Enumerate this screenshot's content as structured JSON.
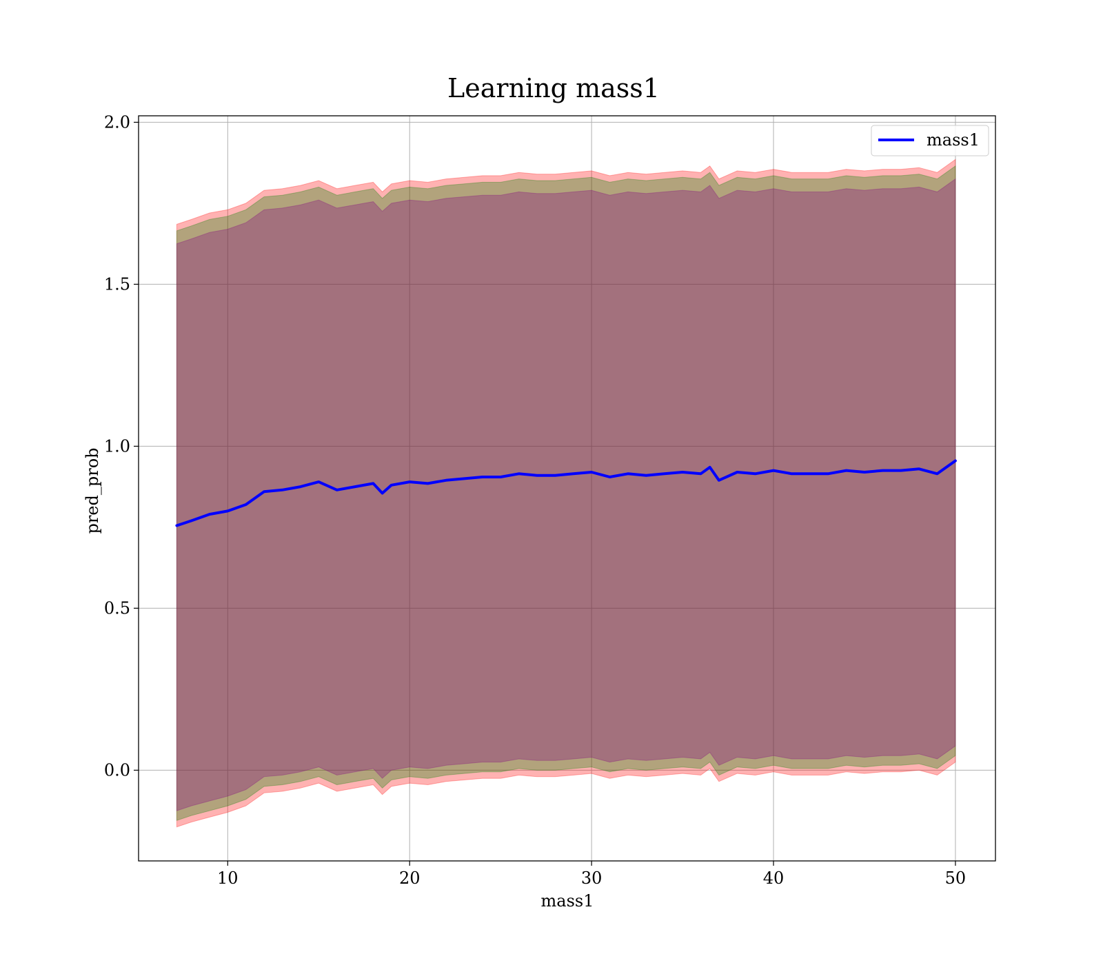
{
  "chart_data": {
    "type": "line",
    "title": "Learning mass1",
    "xlabel": "mass1",
    "ylabel": "pred_prob",
    "xlim": [
      5.1,
      52.2
    ],
    "ylim": [
      -0.28,
      2.02
    ],
    "xticks": [
      10,
      20,
      30,
      40,
      50
    ],
    "xtick_labels": [
      "10",
      "20",
      "30",
      "40",
      "50"
    ],
    "yticks": [
      0.0,
      0.5,
      1.0,
      1.5,
      2.0
    ],
    "ytick_labels": [
      "0.0",
      "0.5",
      "1.0",
      "1.5",
      "2.0"
    ],
    "grid": true,
    "legend": {
      "position": "top-right",
      "entries": [
        "mass1"
      ]
    },
    "x": [
      7.2,
      8,
      9,
      10,
      11,
      12,
      13,
      14,
      15,
      16,
      17,
      18,
      18.5,
      19,
      20,
      21,
      22,
      23,
      24,
      25,
      26,
      27,
      28,
      29,
      30,
      31,
      32,
      33,
      34,
      35,
      36,
      36.5,
      37,
      38,
      39,
      40,
      41,
      42,
      43,
      44,
      45,
      46,
      47,
      48,
      49,
      50
    ],
    "series": [
      {
        "name": "mass1",
        "color": "#0000ff",
        "values": [
          0.755,
          0.77,
          0.79,
          0.8,
          0.82,
          0.86,
          0.865,
          0.875,
          0.89,
          0.865,
          0.875,
          0.885,
          0.855,
          0.88,
          0.89,
          0.885,
          0.895,
          0.9,
          0.905,
          0.905,
          0.915,
          0.91,
          0.91,
          0.915,
          0.92,
          0.905,
          0.915,
          0.91,
          0.915,
          0.92,
          0.915,
          0.935,
          0.895,
          0.92,
          0.915,
          0.925,
          0.915,
          0.915,
          0.915,
          0.925,
          0.92,
          0.925,
          0.925,
          0.93,
          0.915,
          0.955
        ]
      }
    ],
    "bands": [
      {
        "color": "#ff0000",
        "opacity": 0.3,
        "lower": [
          -0.175,
          -0.16,
          -0.145,
          -0.13,
          -0.11,
          -0.07,
          -0.065,
          -0.055,
          -0.04,
          -0.065,
          -0.055,
          -0.045,
          -0.075,
          -0.05,
          -0.04,
          -0.045,
          -0.035,
          -0.03,
          -0.025,
          -0.025,
          -0.015,
          -0.02,
          -0.02,
          -0.015,
          -0.01,
          -0.025,
          -0.015,
          -0.02,
          -0.015,
          -0.01,
          -0.015,
          0.005,
          -0.035,
          -0.01,
          -0.015,
          -0.005,
          -0.015,
          -0.015,
          -0.015,
          -0.005,
          -0.01,
          -0.005,
          -0.005,
          0.0,
          -0.015,
          0.025
        ],
        "upper": [
          1.685,
          1.7,
          1.72,
          1.73,
          1.75,
          1.79,
          1.795,
          1.805,
          1.82,
          1.795,
          1.805,
          1.815,
          1.785,
          1.81,
          1.82,
          1.815,
          1.825,
          1.83,
          1.835,
          1.835,
          1.845,
          1.84,
          1.84,
          1.845,
          1.85,
          1.835,
          1.845,
          1.84,
          1.845,
          1.85,
          1.845,
          1.865,
          1.825,
          1.85,
          1.845,
          1.855,
          1.845,
          1.845,
          1.845,
          1.855,
          1.85,
          1.855,
          1.855,
          1.86,
          1.845,
          1.885
        ]
      },
      {
        "color": "#008000",
        "opacity": 0.3,
        "lower": [
          -0.155,
          -0.14,
          -0.125,
          -0.11,
          -0.09,
          -0.05,
          -0.045,
          -0.035,
          -0.02,
          -0.045,
          -0.035,
          -0.025,
          -0.055,
          -0.03,
          -0.02,
          -0.025,
          -0.015,
          -0.01,
          -0.005,
          -0.005,
          0.005,
          0.0,
          0.0,
          0.005,
          0.01,
          -0.005,
          0.005,
          0.0,
          0.005,
          0.01,
          0.005,
          0.025,
          -0.015,
          0.01,
          0.005,
          0.015,
          0.005,
          0.005,
          0.005,
          0.015,
          0.01,
          0.015,
          0.015,
          0.02,
          0.005,
          0.045
        ],
        "upper": [
          1.665,
          1.68,
          1.7,
          1.71,
          1.73,
          1.77,
          1.775,
          1.785,
          1.8,
          1.775,
          1.785,
          1.795,
          1.765,
          1.79,
          1.8,
          1.795,
          1.805,
          1.81,
          1.815,
          1.815,
          1.825,
          1.82,
          1.82,
          1.825,
          1.83,
          1.815,
          1.825,
          1.82,
          1.825,
          1.83,
          1.825,
          1.845,
          1.805,
          1.83,
          1.825,
          1.835,
          1.825,
          1.825,
          1.825,
          1.835,
          1.83,
          1.835,
          1.835,
          1.84,
          1.825,
          1.865
        ]
      },
      {
        "color": "#800080",
        "opacity": 0.3,
        "lower": [
          -0.125,
          -0.11,
          -0.095,
          -0.08,
          -0.06,
          -0.02,
          -0.015,
          -0.005,
          0.01,
          -0.015,
          -0.005,
          0.005,
          -0.025,
          0.0,
          0.01,
          0.005,
          0.015,
          0.02,
          0.025,
          0.025,
          0.035,
          0.03,
          0.03,
          0.035,
          0.04,
          0.025,
          0.035,
          0.03,
          0.035,
          0.04,
          0.035,
          0.055,
          0.015,
          0.04,
          0.035,
          0.045,
          0.035,
          0.035,
          0.035,
          0.045,
          0.04,
          0.045,
          0.045,
          0.05,
          0.035,
          0.075
        ],
        "upper": [
          1.625,
          1.64,
          1.66,
          1.67,
          1.69,
          1.73,
          1.735,
          1.745,
          1.76,
          1.735,
          1.745,
          1.755,
          1.725,
          1.75,
          1.76,
          1.755,
          1.765,
          1.77,
          1.775,
          1.775,
          1.785,
          1.78,
          1.78,
          1.785,
          1.79,
          1.775,
          1.785,
          1.78,
          1.785,
          1.79,
          1.785,
          1.805,
          1.765,
          1.79,
          1.785,
          1.795,
          1.785,
          1.785,
          1.785,
          1.795,
          1.79,
          1.795,
          1.795,
          1.8,
          1.785,
          1.825
        ]
      }
    ]
  }
}
